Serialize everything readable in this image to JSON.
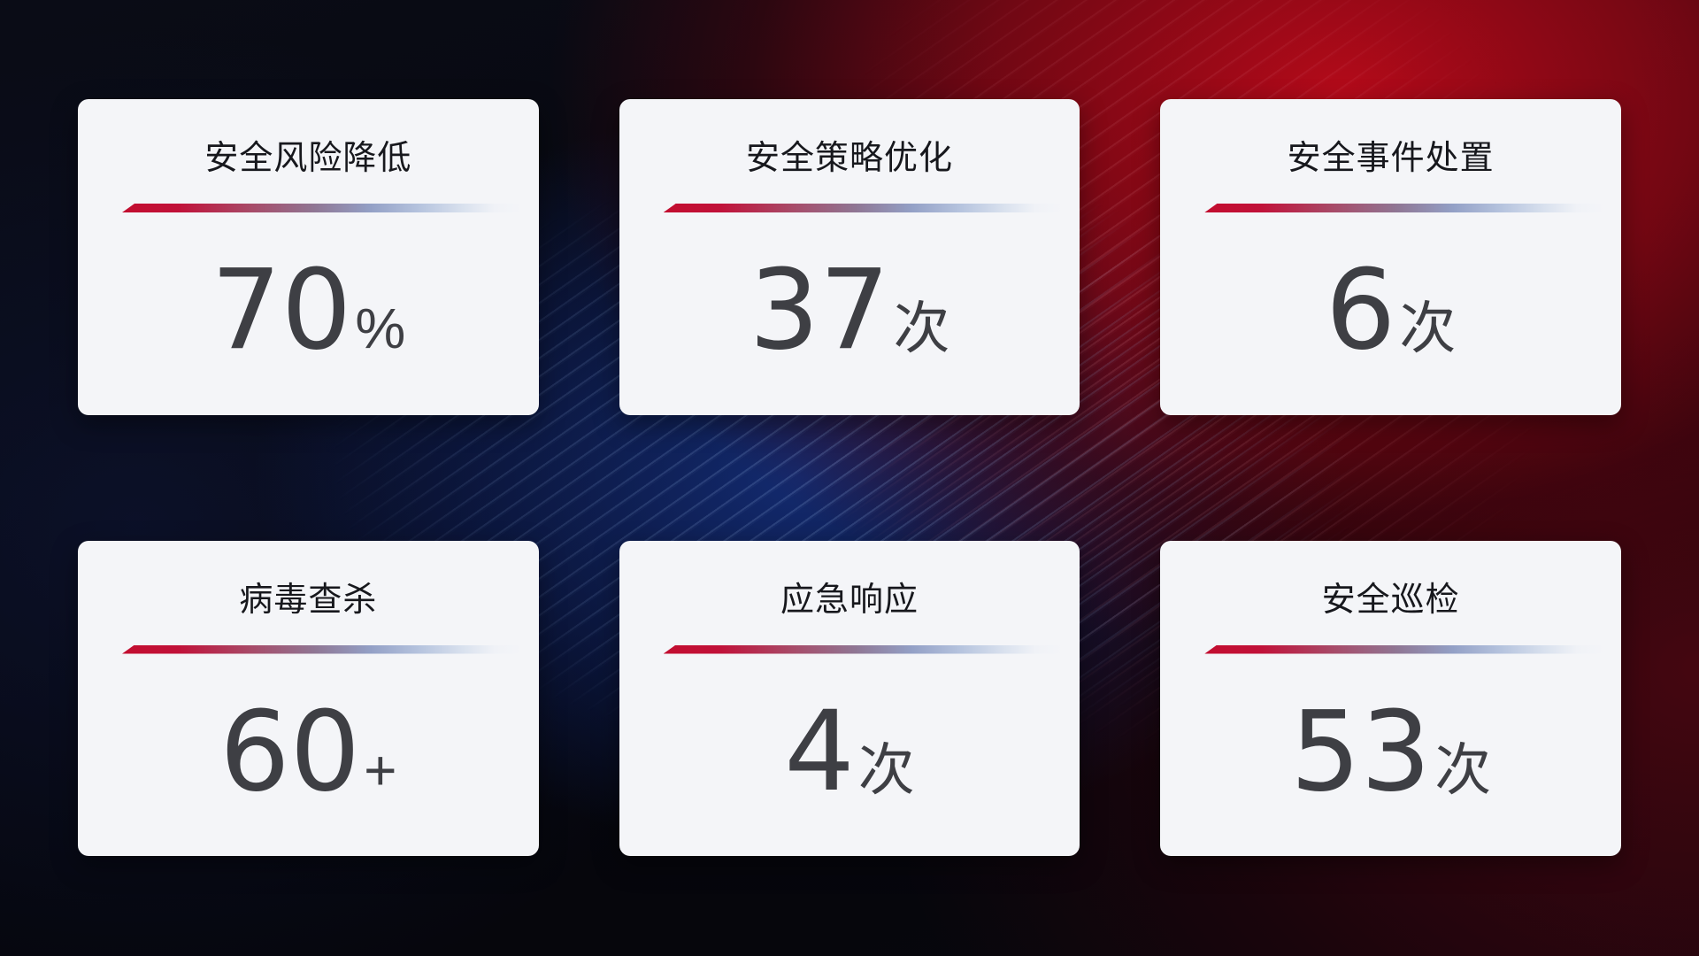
{
  "colors": {
    "card_bg": "#f4f5f8",
    "title_color": "#17181d",
    "value_color": "#3e3f44",
    "divider_start": "#c20d2f",
    "divider_end": "#d9e1ee",
    "bg_red_glow": "#bd0a1a",
    "bg_blue_glow": "#142e7a",
    "bg_base": "#07080f"
  },
  "cards": [
    {
      "title": "安全风险降低",
      "value": "70",
      "unit": "%"
    },
    {
      "title": "安全策略优化",
      "value": "37",
      "unit": "次"
    },
    {
      "title": "安全事件处置",
      "value": "6",
      "unit": "次"
    },
    {
      "title": "病毒查杀",
      "value": "60",
      "unit": "+"
    },
    {
      "title": "应急响应",
      "value": "4",
      "unit": "次"
    },
    {
      "title": "安全巡检",
      "value": "53",
      "unit": "次"
    }
  ]
}
